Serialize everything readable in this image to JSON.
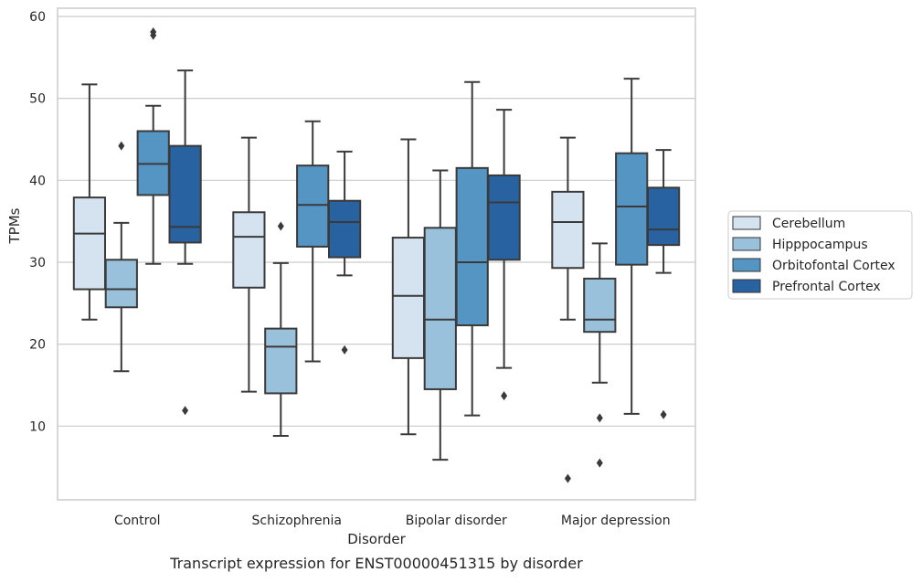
{
  "chart_data": {
    "type": "box",
    "title": "",
    "caption": "Transcript expression for ENST00000451315 by disorder",
    "xlabel": "Disorder",
    "ylabel": "TPMs",
    "ylim": [
      1,
      61
    ],
    "yticks": [
      10,
      20,
      30,
      40,
      50,
      60
    ],
    "grid": "horizontal",
    "legend_position": "right",
    "categories": [
      "Control",
      "Schizophrenia",
      "Bipolar disorder",
      "Major depression"
    ],
    "series": [
      {
        "name": "Cerebellum",
        "color": "#d5e3f1",
        "boxes": [
          {
            "whislo": 23.0,
            "q1": 26.7,
            "med": 33.5,
            "q3": 37.9,
            "whishi": 51.7,
            "fliers": []
          },
          {
            "whislo": 14.2,
            "q1": 26.9,
            "med": 33.1,
            "q3": 36.1,
            "whishi": 45.2,
            "fliers": []
          },
          {
            "whislo": 9.0,
            "q1": 18.3,
            "med": 25.9,
            "q3": 33.0,
            "whishi": 45.0,
            "fliers": []
          },
          {
            "whislo": 23.0,
            "q1": 29.3,
            "med": 34.9,
            "q3": 38.6,
            "whishi": 45.2,
            "fliers": [
              3.6
            ]
          }
        ]
      },
      {
        "name": "Hipppocampus",
        "color": "#9ac1db",
        "boxes": [
          {
            "whislo": 16.7,
            "q1": 24.5,
            "med": 26.7,
            "q3": 30.3,
            "whishi": 34.8,
            "fliers": [
              44.2
            ]
          },
          {
            "whislo": 8.8,
            "q1": 14.0,
            "med": 19.7,
            "q3": 21.9,
            "whishi": 29.9,
            "fliers": [
              34.4
            ]
          },
          {
            "whislo": 5.9,
            "q1": 14.5,
            "med": 23.0,
            "q3": 34.2,
            "whishi": 41.2,
            "fliers": []
          },
          {
            "whislo": 15.3,
            "q1": 21.5,
            "med": 23.0,
            "q3": 28.0,
            "whishi": 32.3,
            "fliers": [
              11.0,
              5.5
            ]
          }
        ]
      },
      {
        "name": "Orbitofontal Cortex",
        "color": "#5595c4",
        "boxes": [
          {
            "whislo": 29.8,
            "q1": 38.2,
            "med": 42.0,
            "q3": 46.0,
            "whishi": 49.1,
            "fliers": [
              57.7,
              58.1
            ]
          },
          {
            "whislo": 17.9,
            "q1": 31.9,
            "med": 37.0,
            "q3": 41.8,
            "whishi": 47.2,
            "fliers": []
          },
          {
            "whislo": 11.3,
            "q1": 22.3,
            "med": 30.0,
            "q3": 41.5,
            "whishi": 52.0,
            "fliers": []
          },
          {
            "whislo": 11.5,
            "q1": 29.7,
            "med": 36.8,
            "q3": 43.3,
            "whishi": 52.4,
            "fliers": []
          }
        ]
      },
      {
        "name": "Prefrontal Cortex",
        "color": "#2862a0",
        "boxes": [
          {
            "whislo": 29.8,
            "q1": 32.4,
            "med": 34.3,
            "q3": 44.2,
            "whishi": 53.4,
            "fliers": [
              11.9
            ]
          },
          {
            "whislo": 28.4,
            "q1": 30.6,
            "med": 34.9,
            "q3": 37.5,
            "whishi": 43.5,
            "fliers": [
              19.3
            ]
          },
          {
            "whislo": 17.1,
            "q1": 30.3,
            "med": 37.3,
            "q3": 40.6,
            "whishi": 48.6,
            "fliers": [
              13.7
            ]
          },
          {
            "whislo": 28.7,
            "q1": 32.1,
            "med": 34.0,
            "q3": 39.1,
            "whishi": 43.7,
            "fliers": [
              11.4
            ]
          }
        ]
      }
    ]
  }
}
